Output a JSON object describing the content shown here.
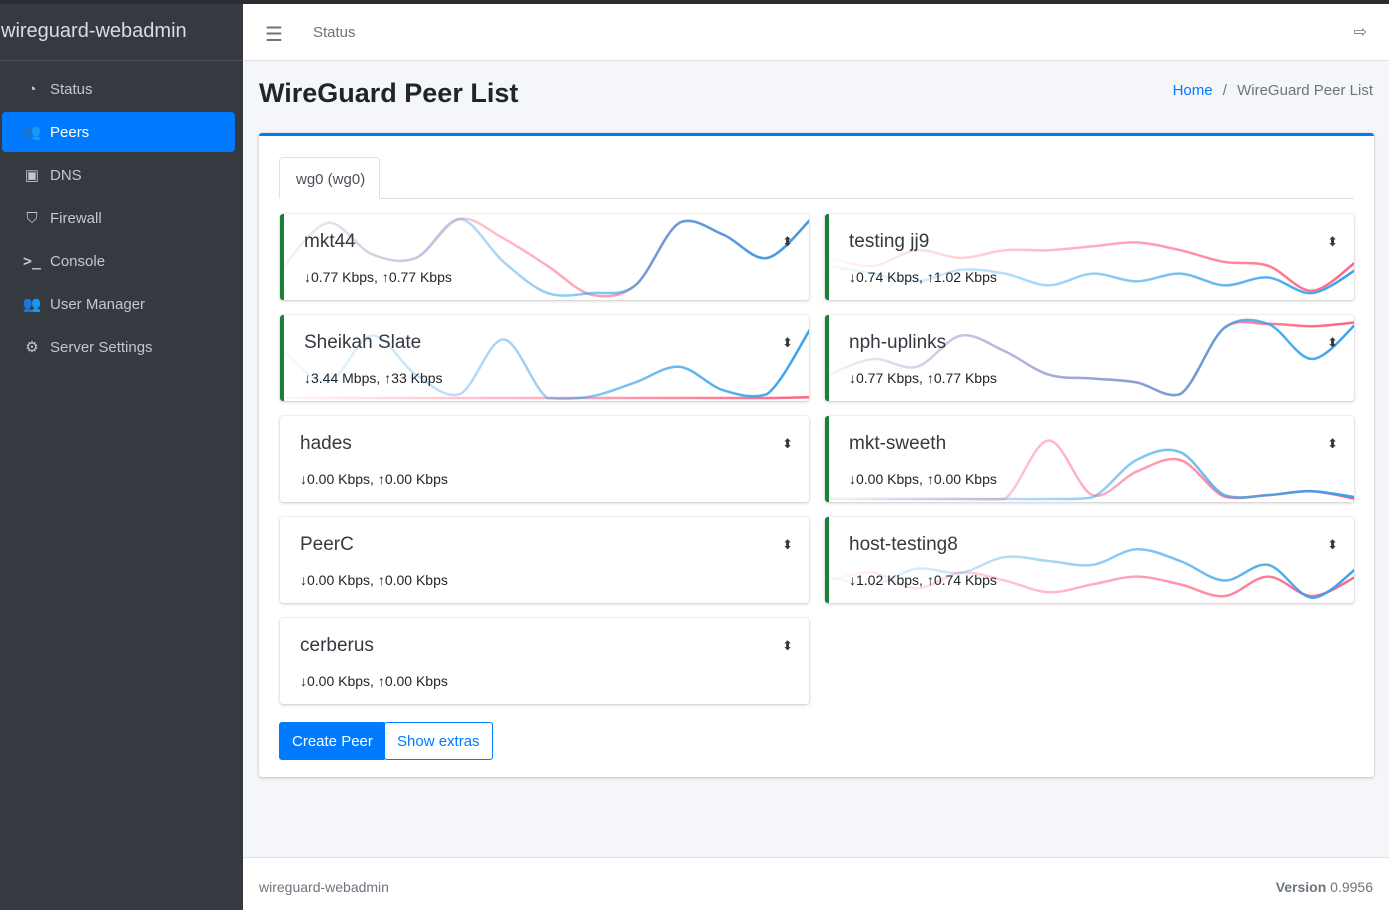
{
  "app": {
    "brand": "wireguard-webadmin"
  },
  "sidebar": {
    "items": [
      {
        "label": "Status",
        "icon": "tachometer-icon",
        "active": false
      },
      {
        "label": "Peers",
        "icon": "users-cog-icon",
        "active": true
      },
      {
        "label": "DNS",
        "icon": "address-book-icon",
        "active": false
      },
      {
        "label": "Firewall",
        "icon": "shield-icon",
        "active": false
      },
      {
        "label": "Console",
        "icon": "terminal-icon",
        "active": false
      },
      {
        "label": "User Manager",
        "icon": "users-icon",
        "active": false
      },
      {
        "label": "Server Settings",
        "icon": "cogs-icon",
        "active": false
      }
    ]
  },
  "header": {
    "status_link": "Status"
  },
  "page": {
    "title": "WireGuard Peer List",
    "breadcrumb_home": "Home",
    "breadcrumb_sep": "/",
    "breadcrumb_current": "WireGuard Peer List"
  },
  "tabs": [
    {
      "label": "wg0 (wg0)"
    }
  ],
  "colors": {
    "rx": "#36a2eb",
    "tx": "#ff6384",
    "online": "#1a7f37",
    "accent": "#007bff"
  },
  "peers": [
    {
      "name": "mkt44",
      "down": "0.77 Kbps,",
      "up": "0.77 Kbps",
      "online": true,
      "rx": [
        0.4,
        0.95,
        0.55,
        0.5,
        1.0,
        0.45,
        0.05,
        0.05,
        0.15,
        0.95,
        0.8,
        0.5,
        1.0
      ],
      "tx": [
        0.4,
        0.95,
        0.55,
        0.5,
        1.0,
        0.75,
        0.4,
        0.03,
        0.15,
        0.95,
        0.8,
        0.5,
        1.0
      ]
    },
    {
      "name": "testing jj9",
      "down": "0.74 Kbps,",
      "up": "1.02 Kbps",
      "online": true,
      "rx": [
        0.4,
        0.3,
        0.2,
        0.35,
        0.3,
        0.15,
        0.3,
        0.2,
        0.3,
        0.15,
        0.25,
        0.05,
        0.35
      ],
      "tx": [
        0.5,
        0.4,
        0.6,
        0.5,
        0.6,
        0.6,
        0.65,
        0.7,
        0.6,
        0.45,
        0.4,
        0.08,
        0.45
      ]
    },
    {
      "name": "Sheikah Slate",
      "down": "3.44 Mbps,",
      "up": "33 Kbps",
      "online": true,
      "rx": [
        0.6,
        0.2,
        0.8,
        0.3,
        0.05,
        0.75,
        0.0,
        0.02,
        0.2,
        0.4,
        0.1,
        0.05,
        0.9
      ],
      "tx": [
        0,
        0,
        0,
        0,
        0,
        0,
        0,
        0,
        0,
        0,
        0,
        0,
        0.01
      ]
    },
    {
      "name": "nph-uplinks",
      "down": "0.77 Kbps,",
      "up": "0.77 Kbps",
      "online": true,
      "rx": [
        0.3,
        0.5,
        0.4,
        0.8,
        0.6,
        0.3,
        0.25,
        0.2,
        0.05,
        0.9,
        0.95,
        0.5,
        0.95
      ],
      "tx": [
        0.3,
        0.5,
        0.4,
        0.8,
        0.6,
        0.3,
        0.25,
        0.2,
        0.05,
        0.9,
        0.95,
        0.92,
        0.97
      ]
    },
    {
      "name": "hades",
      "down": "0.00 Kbps,",
      "up": "0.00 Kbps",
      "online": false,
      "rx": [
        0,
        0,
        0,
        0,
        0,
        0,
        0,
        0,
        0,
        0,
        0,
        0,
        0
      ],
      "tx": [
        0,
        0,
        0,
        0,
        0,
        0,
        0,
        0,
        0,
        0,
        0,
        0,
        0
      ]
    },
    {
      "name": "mkt-sweeth",
      "down": "0.00 Kbps,",
      "up": "0.00 Kbps",
      "online": true,
      "rx": [
        0,
        0,
        0,
        0,
        0,
        0,
        0.02,
        0.5,
        0.6,
        0.05,
        0.05,
        0.1,
        0.02
      ],
      "tx": [
        0,
        0,
        0,
        0,
        0,
        0.75,
        0.05,
        0.35,
        0.5,
        0.03,
        0.05,
        0.1,
        0.0
      ]
    },
    {
      "name": "PeerC",
      "down": "0.00 Kbps,",
      "up": "0.00 Kbps",
      "online": false,
      "rx": [
        0,
        0,
        0,
        0,
        0,
        0,
        0,
        0,
        0,
        0,
        0,
        0,
        0
      ],
      "tx": [
        0,
        0,
        0,
        0,
        0,
        0,
        0,
        0,
        0,
        0,
        0,
        0,
        0
      ]
    },
    {
      "name": "host-testing8",
      "down": "1.02 Kbps,",
      "up": "0.74 Kbps",
      "online": true,
      "rx": [
        0.3,
        0.2,
        0.4,
        0.35,
        0.55,
        0.5,
        0.45,
        0.65,
        0.5,
        0.25,
        0.45,
        0.03,
        0.4
      ],
      "tx": [
        0.25,
        0.35,
        0.15,
        0.35,
        0.25,
        0.1,
        0.2,
        0.3,
        0.2,
        0.05,
        0.3,
        0.05,
        0.3
      ]
    },
    {
      "name": "cerberus",
      "down": "0.00 Kbps,",
      "up": "0.00 Kbps",
      "online": false,
      "rx": [
        0,
        0,
        0,
        0,
        0,
        0,
        0,
        0,
        0,
        0,
        0,
        0,
        0
      ],
      "tx": [
        0,
        0,
        0,
        0,
        0,
        0,
        0,
        0,
        0,
        0,
        0,
        0,
        0
      ]
    }
  ],
  "buttons": {
    "create": "Create Peer",
    "extras": "Show extras"
  },
  "footer": {
    "brand": "wireguard-webadmin",
    "version_label": "Version",
    "version": "0.9956"
  }
}
